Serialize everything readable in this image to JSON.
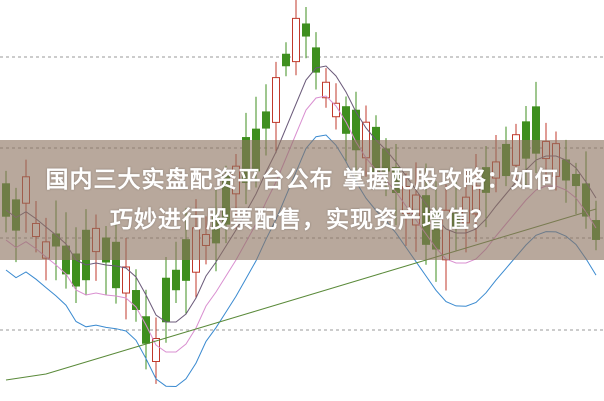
{
  "headline": {
    "line1": "国内三大实盘配资平台公布 掌握配股攻略：如何",
    "line2": "巧妙进行股票配售，实现资产增值？"
  },
  "colors": {
    "up_candle": "#c0392b",
    "down_candle": "#3f8f1f",
    "banner": "#8c735f",
    "ma_lines": [
      "#6b5a7a",
      "#d98fd0",
      "#3a8ad0",
      "#5a8a3a"
    ]
  }
}
